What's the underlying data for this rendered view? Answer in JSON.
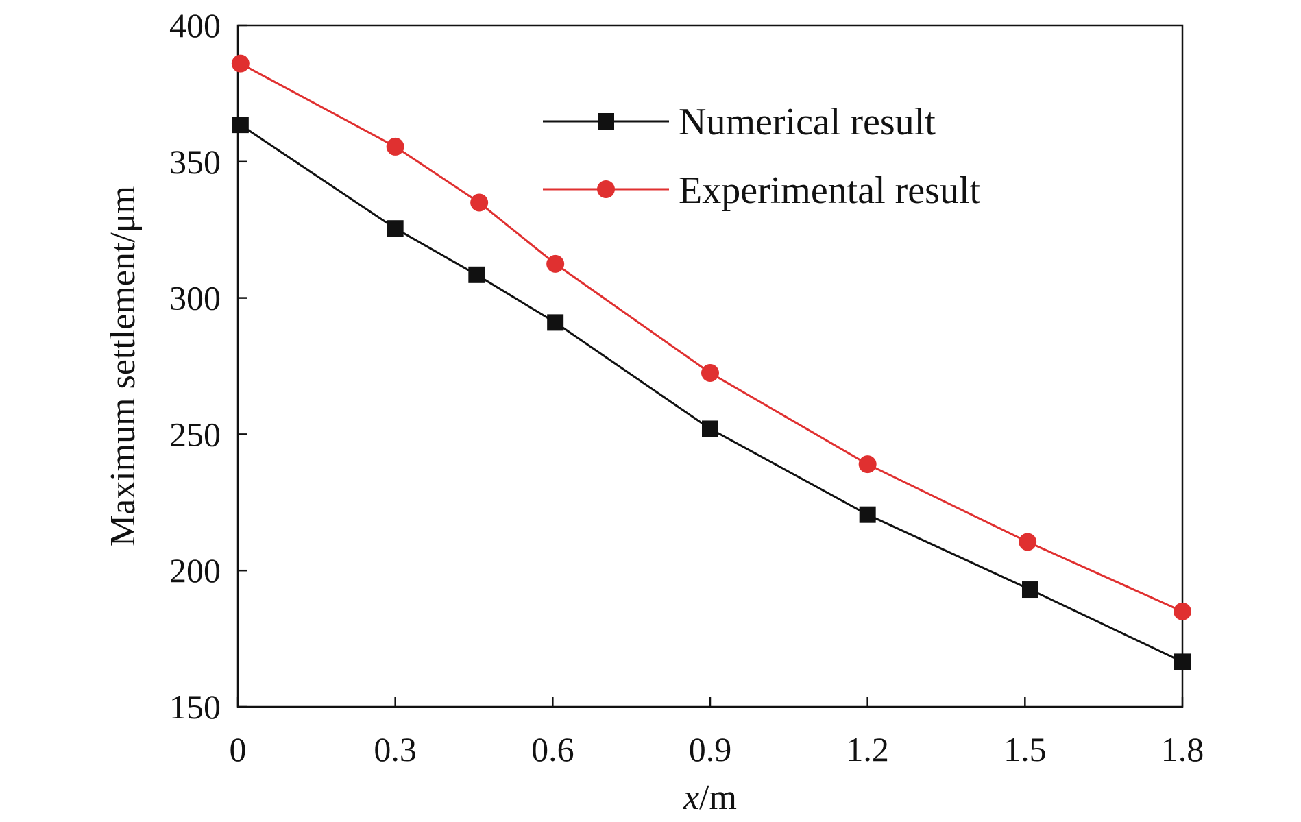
{
  "chart_data": {
    "type": "line",
    "title": "",
    "xlabel_italic": "x",
    "xlabel_unit": "/m",
    "ylabel": "Maximum settlement/μm",
    "xlim": [
      0,
      1.8
    ],
    "ylim": [
      150,
      400
    ],
    "xticks": [
      0,
      0.3,
      0.6,
      0.9,
      1.2,
      1.5,
      1.8
    ],
    "xtick_labels": [
      "0",
      "0.3",
      "0.6",
      "0.9",
      "1.2",
      "1.5",
      "1.8"
    ],
    "yticks": [
      150,
      200,
      250,
      300,
      350,
      400
    ],
    "ytick_labels": [
      "150",
      "200",
      "250",
      "300",
      "350",
      "400"
    ],
    "grid": false,
    "legend_position": "top-right",
    "series": [
      {
        "name": "Numerical result",
        "color": "#111111",
        "marker": "square",
        "x": [
          0.005,
          0.3,
          0.455,
          0.605,
          0.9,
          1.2,
          1.51,
          1.8
        ],
        "y": [
          363.5,
          325.5,
          308.5,
          291,
          252,
          220.5,
          193,
          166.5
        ]
      },
      {
        "name": "Experimental result",
        "color": "#e03030",
        "marker": "circle",
        "x": [
          0.005,
          0.3,
          0.46,
          0.605,
          0.9,
          1.2,
          1.505,
          1.8
        ],
        "y": [
          386,
          355.5,
          335,
          312.5,
          272.5,
          239,
          210.5,
          185
        ]
      }
    ]
  }
}
